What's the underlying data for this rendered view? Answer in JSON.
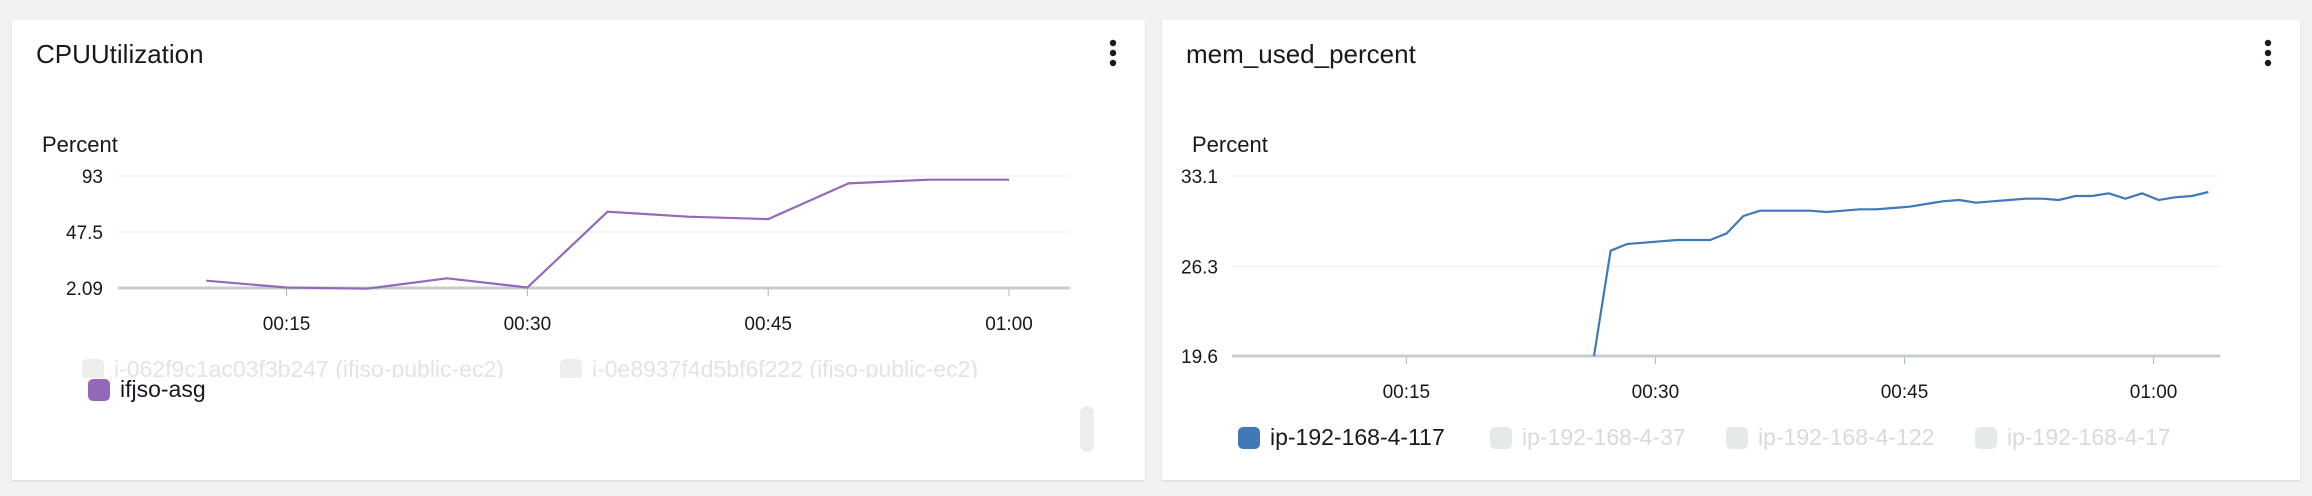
{
  "cpu_panel": {
    "title": "CPUUtilization",
    "menu_icon": "vertical-ellipsis-icon",
    "legend_partial": [
      {
        "label": "i-062f9c1ac03f3b247 (ifjso-public-ec2)",
        "active": false
      },
      {
        "label": "i-0e8937f4d5bf6f222 (ifjso-public-ec2)",
        "active": false
      }
    ],
    "legend": [
      {
        "label": "ifjso-asg",
        "color": "#9469b9",
        "active": true
      }
    ]
  },
  "mem_panel": {
    "title": "mem_used_percent",
    "menu_icon": "vertical-ellipsis-icon",
    "legend": [
      {
        "label": "ip-192-168-4-117",
        "color": "#3f7ab7",
        "active": true
      },
      {
        "label": "ip-192-168-4-37",
        "active": false
      },
      {
        "label": "ip-192-168-4-122",
        "active": false
      },
      {
        "label": "ip-192-168-4-17",
        "active": false
      }
    ]
  },
  "chart_data": [
    {
      "type": "line",
      "title": "CPUUtilization",
      "ylabel": "Percent",
      "xlabel": "",
      "ylim": [
        2.09,
        93
      ],
      "y_ticks": [
        "93",
        "47.5",
        "2.09"
      ],
      "y_tick_values": [
        93,
        47.5,
        2.09
      ],
      "x_ticks": [
        "00:15",
        "00:30",
        "00:45",
        "01:00"
      ],
      "x_tick_minutes": [
        15,
        30,
        45,
        60
      ],
      "xlim_minutes": [
        4.5,
        63.8
      ],
      "grid": true,
      "legend_position": "bottom",
      "series": [
        {
          "name": "ifjso-asg",
          "color": "#9469b9",
          "x_minutes": [
            10,
            15,
            20,
            25,
            30,
            35,
            40,
            45,
            50,
            55,
            60
          ],
          "values": [
            8,
            2.5,
            1.5,
            10,
            2.5,
            64,
            60,
            58,
            87,
            90,
            90
          ]
        }
      ]
    },
    {
      "type": "line",
      "title": "mem_used_percent",
      "ylabel": "Percent",
      "xlabel": "",
      "ylim": [
        19.6,
        33.1
      ],
      "y_ticks": [
        "33.1",
        "26.3",
        "19.6"
      ],
      "y_tick_values": [
        33.1,
        26.3,
        19.6
      ],
      "x_ticks": [
        "00:15",
        "00:30",
        "00:45",
        "01:00"
      ],
      "x_tick_minutes": [
        15,
        30,
        45,
        60
      ],
      "xlim_minutes": [
        4.5,
        64.0
      ],
      "grid": true,
      "legend_position": "bottom",
      "series": [
        {
          "name": "ip-192-168-4-117",
          "color": "#3f7ab7",
          "x_minutes": [
            26.3,
            27.3,
            28.3,
            29.3,
            30.3,
            31.3,
            32.3,
            33.3,
            34.3,
            35.3,
            36.3,
            37.3,
            38.3,
            39.3,
            40.3,
            41.3,
            42.3,
            43.3,
            44.3,
            45.3,
            46.3,
            47.3,
            48.3,
            49.3,
            50.3,
            51.3,
            52.3,
            53.3,
            54.3,
            55.3,
            56.3,
            57.3,
            58.3,
            59.3,
            60.3,
            61.3,
            62.3,
            63.3
          ],
          "values": [
            19.6,
            27.5,
            28.0,
            28.1,
            28.2,
            28.3,
            28.3,
            28.3,
            28.8,
            30.1,
            30.5,
            30.5,
            30.5,
            30.5,
            30.4,
            30.5,
            30.6,
            30.6,
            30.7,
            30.8,
            31.0,
            31.2,
            31.3,
            31.1,
            31.2,
            31.3,
            31.4,
            31.4,
            31.3,
            31.6,
            31.6,
            31.8,
            31.4,
            31.8,
            31.3,
            31.5,
            31.6,
            31.9
          ]
        }
      ]
    }
  ]
}
